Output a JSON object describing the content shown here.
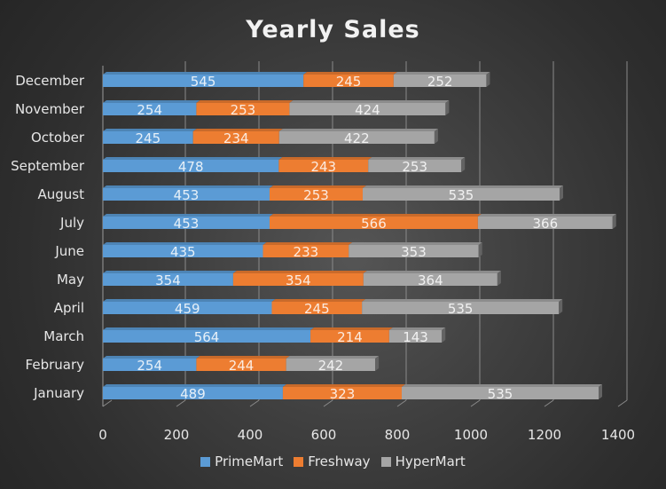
{
  "chart_data": {
    "type": "bar",
    "orientation": "horizontal",
    "stacked": true,
    "title": "Yearly Sales",
    "xlabel": "",
    "ylabel": "",
    "categories": [
      "January",
      "February",
      "March",
      "April",
      "May",
      "June",
      "July",
      "August",
      "September",
      "October",
      "November",
      "December"
    ],
    "series": [
      {
        "name": "PrimeMart",
        "color": "#5B9BD5",
        "values": [
          489,
          254,
          564,
          459,
          354,
          435,
          453,
          453,
          478,
          245,
          254,
          545
        ]
      },
      {
        "name": "Freshway",
        "color": "#ED7D31",
        "values": [
          323,
          244,
          214,
          245,
          354,
          233,
          566,
          253,
          243,
          234,
          253,
          245
        ]
      },
      {
        "name": "HyperMart",
        "color": "#A5A5A5",
        "values": [
          535,
          242,
          143,
          535,
          364,
          353,
          366,
          535,
          253,
          422,
          424,
          252
        ]
      }
    ],
    "xlim": [
      0,
      1400
    ],
    "xticks": [
      "0",
      "200",
      "400",
      "600",
      "800",
      "1000",
      "1200",
      "1400"
    ],
    "tick_values": [
      0,
      200,
      400,
      600,
      800,
      1000,
      1200,
      1400
    ],
    "grid": true,
    "legend_position": "bottom",
    "data_labels": true
  }
}
